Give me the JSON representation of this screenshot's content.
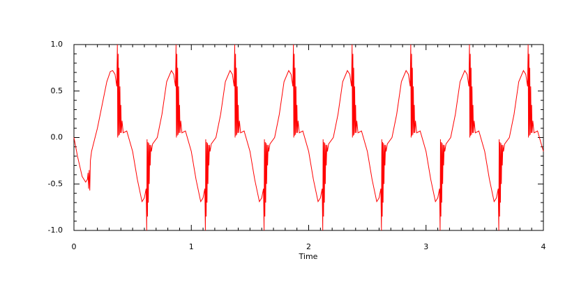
{
  "chart_data": {
    "type": "line",
    "x_label": "Time",
    "color": "#ff0000",
    "x": [
      0,
      0.03,
      0.07,
      0.1,
      0.115,
      0.12,
      0.125,
      0.13,
      0.135,
      0.14,
      0.15,
      0.17,
      0.2,
      0.24,
      0.28,
      0.31,
      0.33,
      0.35,
      0.365,
      0.37,
      0.373,
      0.377,
      0.38,
      0.384,
      0.388,
      0.392,
      0.396,
      0.4,
      0.404,
      0.41,
      0.42,
      0.45,
      0.5,
      0.54,
      0.58,
      0.6,
      0.615,
      0.62,
      0.623,
      0.627,
      0.63,
      0.634,
      0.638,
      0.642,
      0.646,
      0.65,
      0.655,
      0.66,
      0.67,
      0.71,
      0.75,
      0.79,
      0.83,
      0.85,
      0.865,
      0.87,
      0.873,
      0.877,
      0.88,
      0.884,
      0.888,
      0.892,
      0.896,
      0.9,
      0.904,
      0.91,
      0.92,
      0.95,
      1.0,
      1.04,
      1.08,
      1.1,
      1.115,
      1.12,
      1.123,
      1.127,
      1.13,
      1.134,
      1.138,
      1.142,
      1.146,
      1.15,
      1.155,
      1.16,
      1.17,
      1.21,
      1.25,
      1.29,
      1.33,
      1.35,
      1.365,
      1.37,
      1.373,
      1.377,
      1.38,
      1.384,
      1.388,
      1.392,
      1.396,
      1.4,
      1.404,
      1.41,
      1.42,
      1.45,
      1.5,
      1.54,
      1.58,
      1.6,
      1.615,
      1.62,
      1.623,
      1.627,
      1.63,
      1.634,
      1.638,
      1.642,
      1.646,
      1.65,
      1.655,
      1.66,
      1.67,
      1.71,
      1.75,
      1.79,
      1.83,
      1.85,
      1.865,
      1.87,
      1.873,
      1.877,
      1.88,
      1.884,
      1.888,
      1.892,
      1.896,
      1.9,
      1.904,
      1.91,
      1.92,
      1.95,
      2.0,
      2.04,
      2.08,
      2.1,
      2.115,
      2.12,
      2.123,
      2.127,
      2.13,
      2.134,
      2.138,
      2.142,
      2.146,
      2.15,
      2.155,
      2.16,
      2.17,
      2.21,
      2.25,
      2.29,
      2.33,
      2.35,
      2.365,
      2.37,
      2.373,
      2.377,
      2.38,
      2.384,
      2.388,
      2.392,
      2.396,
      2.4,
      2.404,
      2.41,
      2.42,
      2.45,
      2.5,
      2.54,
      2.58,
      2.6,
      2.615,
      2.62,
      2.623,
      2.627,
      2.63,
      2.634,
      2.638,
      2.642,
      2.646,
      2.65,
      2.655,
      2.66,
      2.67,
      2.71,
      2.75,
      2.79,
      2.83,
      2.85,
      2.865,
      2.87,
      2.873,
      2.877,
      2.88,
      2.884,
      2.888,
      2.892,
      2.896,
      2.9,
      2.904,
      2.91,
      2.92,
      2.95,
      3.0,
      3.04,
      3.08,
      3.1,
      3.115,
      3.12,
      3.123,
      3.127,
      3.13,
      3.134,
      3.138,
      3.142,
      3.146,
      3.15,
      3.155,
      3.16,
      3.17,
      3.21,
      3.25,
      3.29,
      3.33,
      3.35,
      3.365,
      3.37,
      3.373,
      3.377,
      3.38,
      3.384,
      3.388,
      3.392,
      3.396,
      3.4,
      3.404,
      3.41,
      3.42,
      3.45,
      3.5,
      3.54,
      3.58,
      3.6,
      3.615,
      3.62,
      3.623,
      3.627,
      3.63,
      3.634,
      3.638,
      3.642,
      3.646,
      3.65,
      3.655,
      3.66,
      3.67,
      3.71,
      3.75,
      3.79,
      3.83,
      3.85,
      3.865,
      3.87,
      3.873,
      3.877,
      3.88,
      3.884,
      3.888,
      3.892,
      3.896,
      3.9,
      3.904,
      3.91,
      3.92,
      3.95,
      4.0
    ],
    "values": [
      0,
      -0.2,
      -0.42,
      -0.48,
      -0.45,
      -0.38,
      -0.55,
      -0.35,
      -0.57,
      -0.25,
      -0.15,
      -0.05,
      0.1,
      0.35,
      0.6,
      0.71,
      0.72,
      0.68,
      0.55,
      1.0,
      0,
      0.9,
      0.02,
      0.75,
      0.03,
      0.55,
      0.05,
      0.35,
      0.05,
      0.18,
      0.05,
      0.07,
      -0.15,
      -0.45,
      -0.69,
      -0.65,
      -0.55,
      -1.0,
      -0.02,
      -0.85,
      -0.05,
      -0.7,
      -0.06,
      -0.5,
      -0.08,
      -0.3,
      -0.08,
      -0.15,
      -0.07,
      0,
      0.25,
      0.6,
      0.72,
      0.68,
      0.55,
      1.0,
      0,
      0.9,
      0.02,
      0.75,
      0.03,
      0.55,
      0.05,
      0.35,
      0.05,
      0.18,
      0.05,
      0.07,
      -0.15,
      -0.45,
      -0.69,
      -0.65,
      -0.55,
      -1.0,
      -0.02,
      -0.85,
      -0.05,
      -0.7,
      -0.06,
      -0.5,
      -0.08,
      -0.3,
      -0.08,
      -0.15,
      -0.07,
      0,
      0.25,
      0.6,
      0.72,
      0.68,
      0.55,
      1.0,
      0,
      0.9,
      0.02,
      0.75,
      0.03,
      0.55,
      0.05,
      0.35,
      0.05,
      0.18,
      0.05,
      0.07,
      -0.15,
      -0.45,
      -0.69,
      -0.65,
      -0.55,
      -1.0,
      -0.02,
      -0.85,
      -0.05,
      -0.7,
      -0.06,
      -0.5,
      -0.08,
      -0.3,
      -0.08,
      -0.15,
      -0.07,
      0,
      0.25,
      0.6,
      0.72,
      0.68,
      0.55,
      1.0,
      0,
      0.9,
      0.02,
      0.75,
      0.03,
      0.55,
      0.05,
      0.35,
      0.05,
      0.18,
      0.05,
      0.07,
      -0.15,
      -0.45,
      -0.69,
      -0.65,
      -0.55,
      -1.0,
      -0.02,
      -0.85,
      -0.05,
      -0.7,
      -0.06,
      -0.5,
      -0.08,
      -0.3,
      -0.08,
      -0.15,
      -0.07,
      0,
      0.25,
      0.6,
      0.72,
      0.68,
      0.55,
      1.0,
      0,
      0.9,
      0.02,
      0.75,
      0.03,
      0.55,
      0.05,
      0.35,
      0.05,
      0.18,
      0.05,
      0.07,
      -0.15,
      -0.45,
      -0.69,
      -0.65,
      -0.55,
      -1.0,
      -0.02,
      -0.85,
      -0.05,
      -0.7,
      -0.06,
      -0.5,
      -0.08,
      -0.3,
      -0.08,
      -0.15,
      -0.07,
      0,
      0.25,
      0.6,
      0.72,
      0.68,
      0.55,
      1.0,
      0,
      0.9,
      0.02,
      0.75,
      0.03,
      0.55,
      0.05,
      0.35,
      0.05,
      0.18,
      0.05,
      0.07,
      -0.15,
      -0.45,
      -0.69,
      -0.65,
      -0.55,
      -1.0,
      -0.02,
      -0.85,
      -0.05,
      -0.7,
      -0.06,
      -0.5,
      -0.08,
      -0.3,
      -0.08,
      -0.15,
      -0.07,
      0,
      0.25,
      0.6,
      0.72,
      0.68,
      0.55,
      1.0,
      0,
      0.9,
      0.02,
      0.75,
      0.03,
      0.55,
      0.05,
      0.35,
      0.05,
      0.18,
      0.05,
      0.07,
      -0.15,
      -0.45,
      -0.69,
      -0.65,
      -0.55,
      -1.0,
      -0.02,
      -0.85,
      -0.05,
      -0.7,
      -0.06,
      -0.5,
      -0.08,
      -0.3,
      -0.08,
      -0.15,
      -0.07,
      0,
      0.25,
      0.6,
      0.72,
      0.68,
      0.55,
      1.0,
      0,
      0.9,
      0.02,
      0.75,
      0.03,
      0.55,
      0.05,
      0.35,
      0.05,
      0.18,
      0.05,
      0.07,
      -0.15
    ],
    "xlim": [
      0,
      4
    ],
    "xticks": [
      0,
      1,
      2,
      3,
      4
    ],
    "ylim": [
      -1,
      1
    ],
    "yticks": [
      {
        "value": -1,
        "label": "-1.0"
      },
      -0.5,
      {
        "value": 0,
        "label": "0.0"
      },
      0.5,
      {
        "value": 1,
        "label": "1.0"
      }
    ]
  }
}
